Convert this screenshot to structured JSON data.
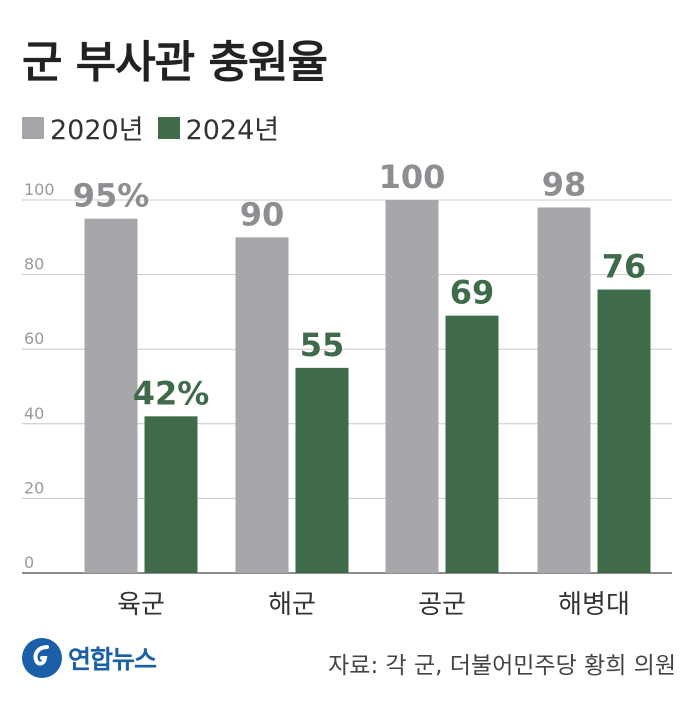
{
  "title": "군 부사관 충원율",
  "legend": [
    {
      "label": "2020년",
      "color": "#a7a7ab"
    },
    {
      "label": "2024년",
      "color": "#3f6b4a"
    }
  ],
  "chart_data": {
    "type": "bar",
    "categories": [
      "육군",
      "해군",
      "공군",
      "해병대"
    ],
    "series": [
      {
        "name": "2020년",
        "values": [
          95,
          90,
          100,
          98
        ],
        "labels": [
          "95%",
          "90",
          "100",
          "98"
        ],
        "color": "#a7a7ab",
        "label_color": "#8e8e92"
      },
      {
        "name": "2024년",
        "values": [
          42,
          55,
          69,
          76
        ],
        "labels": [
          "42%",
          "55",
          "69",
          "76"
        ],
        "color": "#3f6b4a",
        "label_color": "#3f6b4a"
      }
    ],
    "yticks": [
      0,
      20,
      40,
      60,
      80,
      100
    ],
    "ylim": [
      0,
      100
    ],
    "grid": true
  },
  "footer": {
    "logo_text": "연합뉴스",
    "source": "자료: 각 군, 더불어민주당 황희 의원"
  }
}
